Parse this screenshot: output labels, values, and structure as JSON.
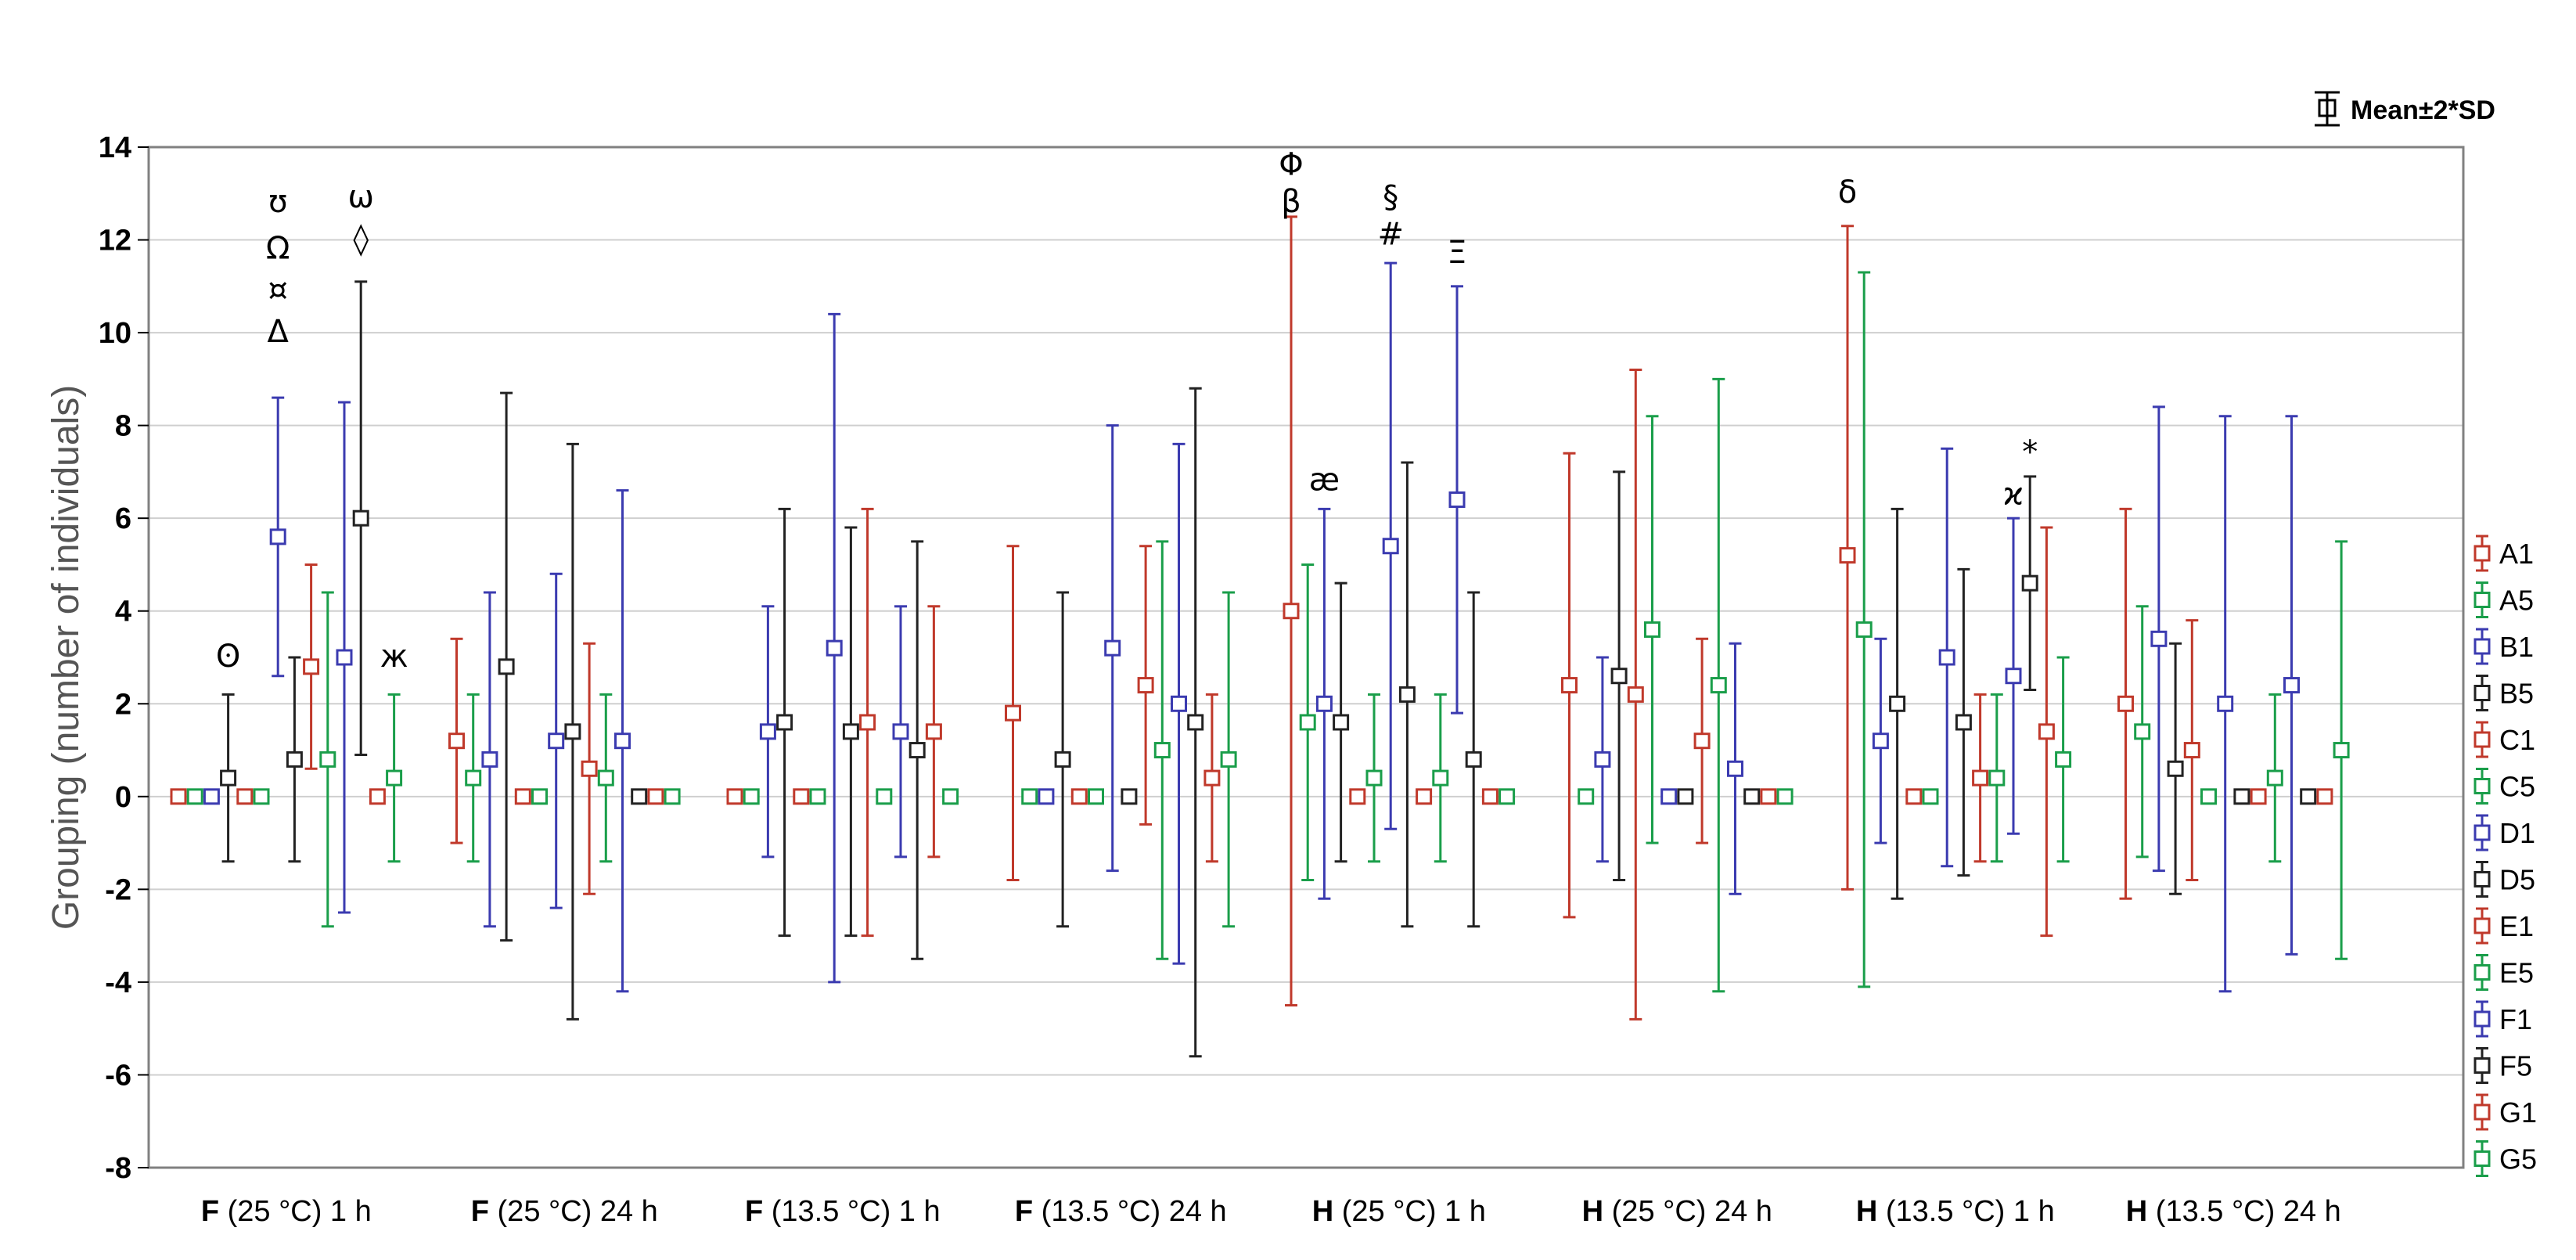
{
  "chart_data": {
    "type": "scatter",
    "title": "",
    "xlabel": "",
    "ylabel": "Grouping (number of individuals)",
    "ylim": [
      -8,
      14
    ],
    "yticks": [
      "14",
      "12",
      "10",
      "8",
      "6",
      "4",
      "2",
      "0",
      "-2",
      "-4",
      "-6",
      "-8"
    ],
    "grid": true,
    "legend_position": "right",
    "mean_legend": "Mean±2*SD",
    "categories": [
      {
        "bold": "F",
        "rest": " (25 °C) 1 h"
      },
      {
        "bold": "F",
        "rest": " (25 °C) 24 h"
      },
      {
        "bold": "F",
        "rest": " (13.5 °C) 1 h"
      },
      {
        "bold": "F",
        "rest": " (13.5 °C) 24 h"
      },
      {
        "bold": "H",
        "rest": " (25 °C) 1 h"
      },
      {
        "bold": "H",
        "rest": " (25 °C) 24 h"
      },
      {
        "bold": "H",
        "rest": " (13.5 °C) 1 h"
      },
      {
        "bold": "H",
        "rest": " (13.5 °C) 24 h"
      }
    ],
    "series": [
      {
        "name": "A1",
        "color": "#c0392b",
        "points": [
          {
            "mean": 0,
            "lo": 0,
            "hi": 0
          },
          {
            "mean": 1.2,
            "lo": -1.0,
            "hi": 3.4
          },
          {
            "mean": 0,
            "lo": 0,
            "hi": 0
          },
          {
            "mean": 1.8,
            "lo": -1.8,
            "hi": 5.4
          },
          {
            "mean": 4.0,
            "lo": -4.5,
            "hi": 12.5
          },
          {
            "mean": 2.4,
            "lo": -2.6,
            "hi": 7.4
          },
          {
            "mean": 5.2,
            "lo": -2.0,
            "hi": 12.3
          },
          {
            "mean": 2.0,
            "lo": -2.2,
            "hi": 6.2
          }
        ]
      },
      {
        "name": "A5",
        "color": "#1a9e4a",
        "points": [
          {
            "mean": 0,
            "lo": 0,
            "hi": 0
          },
          {
            "mean": 0.4,
            "lo": -1.4,
            "hi": 2.2
          },
          {
            "mean": 0,
            "lo": 0,
            "hi": 0
          },
          {
            "mean": 0,
            "lo": 0,
            "hi": 0
          },
          {
            "mean": 1.6,
            "lo": -1.8,
            "hi": 5.0
          },
          {
            "mean": 0,
            "lo": 0,
            "hi": 0
          },
          {
            "mean": 3.6,
            "lo": -4.1,
            "hi": 11.3
          },
          {
            "mean": 1.4,
            "lo": -1.3,
            "hi": 4.1
          }
        ]
      },
      {
        "name": "B1",
        "color": "#3b3bb0",
        "points": [
          {
            "mean": 0,
            "lo": 0,
            "hi": 0
          },
          {
            "mean": 0.8,
            "lo": -2.8,
            "hi": 4.4
          },
          {
            "mean": 1.4,
            "lo": -1.3,
            "hi": 4.1
          },
          {
            "mean": 0,
            "lo": 0,
            "hi": 0
          },
          {
            "mean": 2.0,
            "lo": -2.2,
            "hi": 6.2
          },
          {
            "mean": 0.8,
            "lo": -1.4,
            "hi": 3.0
          },
          {
            "mean": 1.2,
            "lo": -1.0,
            "hi": 3.4
          },
          {
            "mean": 3.4,
            "lo": -1.6,
            "hi": 8.4
          }
        ]
      },
      {
        "name": "B5",
        "color": "#222222",
        "points": [
          {
            "mean": 0.4,
            "lo": -1.4,
            "hi": 2.2
          },
          {
            "mean": 2.8,
            "lo": -3.1,
            "hi": 8.7
          },
          {
            "mean": 1.6,
            "lo": -3.0,
            "hi": 6.2
          },
          {
            "mean": 0.8,
            "lo": -2.8,
            "hi": 4.4
          },
          {
            "mean": 1.6,
            "lo": -1.4,
            "hi": 4.6
          },
          {
            "mean": 2.6,
            "lo": -1.8,
            "hi": 7.0
          },
          {
            "mean": 2.0,
            "lo": -2.2,
            "hi": 6.2
          },
          {
            "mean": 0.6,
            "lo": -2.1,
            "hi": 3.3
          }
        ]
      },
      {
        "name": "C1",
        "color": "#c0392b",
        "points": [
          {
            "mean": 0,
            "lo": 0,
            "hi": 0
          },
          {
            "mean": 0,
            "lo": 0,
            "hi": 0
          },
          {
            "mean": 0,
            "lo": 0,
            "hi": 0
          },
          {
            "mean": 0,
            "lo": 0,
            "hi": 0
          },
          {
            "mean": 0,
            "lo": 0,
            "hi": 0
          },
          {
            "mean": 2.2,
            "lo": -4.8,
            "hi": 9.2
          },
          {
            "mean": 0,
            "lo": 0,
            "hi": 0
          },
          {
            "mean": 1.0,
            "lo": -1.8,
            "hi": 3.8
          }
        ]
      },
      {
        "name": "C5",
        "color": "#1a9e4a",
        "points": [
          {
            "mean": 0,
            "lo": 0,
            "hi": 0
          },
          {
            "mean": 0,
            "lo": 0,
            "hi": 0
          },
          {
            "mean": 0,
            "lo": 0,
            "hi": 0
          },
          {
            "mean": 0,
            "lo": 0,
            "hi": 0
          },
          {
            "mean": 0.4,
            "lo": -1.4,
            "hi": 2.2
          },
          {
            "mean": 3.6,
            "lo": -1.0,
            "hi": 8.2
          },
          {
            "mean": 0,
            "lo": 0,
            "hi": 0
          },
          {
            "mean": 0,
            "lo": 0,
            "hi": 0
          }
        ]
      },
      {
        "name": "D1",
        "color": "#3b3bb0",
        "points": [
          {
            "mean": 5.6,
            "lo": 2.6,
            "hi": 8.6
          },
          {
            "mean": 1.2,
            "lo": -2.4,
            "hi": 4.8
          },
          {
            "mean": 3.2,
            "lo": -4.0,
            "hi": 10.4
          },
          {
            "mean": 3.2,
            "lo": -1.6,
            "hi": 8.0
          },
          {
            "mean": 5.4,
            "lo": -0.7,
            "hi": 11.5
          },
          {
            "mean": 0,
            "lo": 0,
            "hi": 0
          },
          {
            "mean": 3.0,
            "lo": -1.5,
            "hi": 7.5
          },
          {
            "mean": 2.0,
            "lo": -4.2,
            "hi": 8.2
          }
        ]
      },
      {
        "name": "D5",
        "color": "#222222",
        "points": [
          {
            "mean": 0.8,
            "lo": -1.4,
            "hi": 3.0
          },
          {
            "mean": 1.4,
            "lo": -4.8,
            "hi": 7.6
          },
          {
            "mean": 1.4,
            "lo": -3.0,
            "hi": 5.8
          },
          {
            "mean": 0,
            "lo": 0,
            "hi": 0
          },
          {
            "mean": 2.2,
            "lo": -2.8,
            "hi": 7.2
          },
          {
            "mean": 0,
            "lo": 0,
            "hi": 0
          },
          {
            "mean": 1.6,
            "lo": -1.7,
            "hi": 4.9
          },
          {
            "mean": 0,
            "lo": 0,
            "hi": 0
          }
        ]
      },
      {
        "name": "E1",
        "color": "#c0392b",
        "points": [
          {
            "mean": 2.8,
            "lo": 0.6,
            "hi": 5.0
          },
          {
            "mean": 0.6,
            "lo": -2.1,
            "hi": 3.3
          },
          {
            "mean": 1.6,
            "lo": -3.0,
            "hi": 6.2
          },
          {
            "mean": 2.4,
            "lo": -0.6,
            "hi": 5.4
          },
          {
            "mean": 0,
            "lo": 0,
            "hi": 0
          },
          {
            "mean": 1.2,
            "lo": -1.0,
            "hi": 3.4
          },
          {
            "mean": 0.4,
            "lo": -1.4,
            "hi": 2.2
          },
          {
            "mean": 0,
            "lo": 0,
            "hi": 0
          }
        ]
      },
      {
        "name": "E5",
        "color": "#1a9e4a",
        "points": [
          {
            "mean": 0.8,
            "lo": -2.8,
            "hi": 4.4
          },
          {
            "mean": 0.4,
            "lo": -1.4,
            "hi": 2.2
          },
          {
            "mean": 0,
            "lo": 0,
            "hi": 0
          },
          {
            "mean": 1.0,
            "lo": -3.5,
            "hi": 5.5
          },
          {
            "mean": 0.4,
            "lo": -1.4,
            "hi": 2.2
          },
          {
            "mean": 2.4,
            "lo": -4.2,
            "hi": 9.0
          },
          {
            "mean": 0.4,
            "lo": -1.4,
            "hi": 2.2
          },
          {
            "mean": 0.4,
            "lo": -1.4,
            "hi": 2.2
          }
        ]
      },
      {
        "name": "F1",
        "color": "#3b3bb0",
        "points": [
          {
            "mean": 3.0,
            "lo": -2.5,
            "hi": 8.5
          },
          {
            "mean": 1.2,
            "lo": -4.2,
            "hi": 6.6
          },
          {
            "mean": 1.4,
            "lo": -1.3,
            "hi": 4.1
          },
          {
            "mean": 2.0,
            "lo": -3.6,
            "hi": 7.6
          },
          {
            "mean": 6.4,
            "lo": 1.8,
            "hi": 11.0
          },
          {
            "mean": 0.6,
            "lo": -2.1,
            "hi": 3.3
          },
          {
            "mean": 2.6,
            "lo": -0.8,
            "hi": 6.0
          },
          {
            "mean": 2.4,
            "lo": -3.4,
            "hi": 8.2
          }
        ]
      },
      {
        "name": "F5",
        "color": "#222222",
        "points": [
          {
            "mean": 6.0,
            "lo": 0.9,
            "hi": 11.1
          },
          {
            "mean": 0,
            "lo": 0,
            "hi": 0
          },
          {
            "mean": 1.0,
            "lo": -3.5,
            "hi": 5.5
          },
          {
            "mean": 1.6,
            "lo": -5.6,
            "hi": 8.8
          },
          {
            "mean": 0.8,
            "lo": -2.8,
            "hi": 4.4
          },
          {
            "mean": 0,
            "lo": 0,
            "hi": 0
          },
          {
            "mean": 4.6,
            "lo": 2.3,
            "hi": 6.9
          },
          {
            "mean": 0,
            "lo": 0,
            "hi": 0
          }
        ]
      },
      {
        "name": "G1",
        "color": "#c0392b",
        "points": [
          {
            "mean": 0,
            "lo": 0,
            "hi": 0
          },
          {
            "mean": 0,
            "lo": 0,
            "hi": 0
          },
          {
            "mean": 1.4,
            "lo": -1.3,
            "hi": 4.1
          },
          {
            "mean": 0.4,
            "lo": -1.4,
            "hi": 2.2
          },
          {
            "mean": 0,
            "lo": 0,
            "hi": 0
          },
          {
            "mean": 0,
            "lo": 0,
            "hi": 0
          },
          {
            "mean": 1.4,
            "lo": -3.0,
            "hi": 5.8
          },
          {
            "mean": 0,
            "lo": 0,
            "hi": 0
          }
        ]
      },
      {
        "name": "G5",
        "color": "#1a9e4a",
        "points": [
          {
            "mean": 0.4,
            "lo": -1.4,
            "hi": 2.2
          },
          {
            "mean": 0,
            "lo": 0,
            "hi": 0
          },
          {
            "mean": 0,
            "lo": 0,
            "hi": 0
          },
          {
            "mean": 0.8,
            "lo": -2.8,
            "hi": 4.4
          },
          {
            "mean": 0,
            "lo": 0,
            "hi": 0
          },
          {
            "mean": 0,
            "lo": 0,
            "hi": 0
          },
          {
            "mean": 0.8,
            "lo": -1.4,
            "hi": 3.0
          },
          {
            "mean": 1.0,
            "lo": -3.5,
            "hi": 5.5
          }
        ]
      }
    ],
    "annotations": [
      {
        "text": "ʊ",
        "category": 0,
        "series": 6,
        "y": 12.6
      },
      {
        "text": "Ω",
        "category": 0,
        "series": 6,
        "y": 11.6
      },
      {
        "text": "¤",
        "category": 0,
        "series": 6,
        "y": 10.7
      },
      {
        "text": "Δ",
        "category": 0,
        "series": 6,
        "y": 9.8
      },
      {
        "text": "ω",
        "category": 0,
        "series": 11,
        "y": 12.7
      },
      {
        "text": "◊",
        "category": 0,
        "series": 11,
        "y": 11.8
      },
      {
        "text": "ʘ",
        "category": 0,
        "series": 3,
        "y": 2.8
      },
      {
        "text": "ж",
        "category": 0,
        "series": 13,
        "y": 2.8
      },
      {
        "text": "Φ",
        "category": 4,
        "series": 0,
        "y": 13.4
      },
      {
        "text": "β",
        "category": 4,
        "series": 0,
        "y": 12.6
      },
      {
        "text": "æ",
        "category": 4,
        "series": 2,
        "y": 6.6
      },
      {
        "text": "§",
        "category": 4,
        "series": 6,
        "y": 12.7
      },
      {
        "text": "#",
        "category": 4,
        "series": 6,
        "y": 11.9
      },
      {
        "text": "Ξ",
        "category": 4,
        "series": 10,
        "y": 11.5
      },
      {
        "text": "δ",
        "category": 6,
        "series": 0,
        "y": 12.8
      },
      {
        "text": "ϰ",
        "category": 6,
        "series": 10,
        "y": 6.3
      },
      {
        "text": "*",
        "category": 6,
        "series": 11,
        "y": 7.2
      }
    ]
  }
}
